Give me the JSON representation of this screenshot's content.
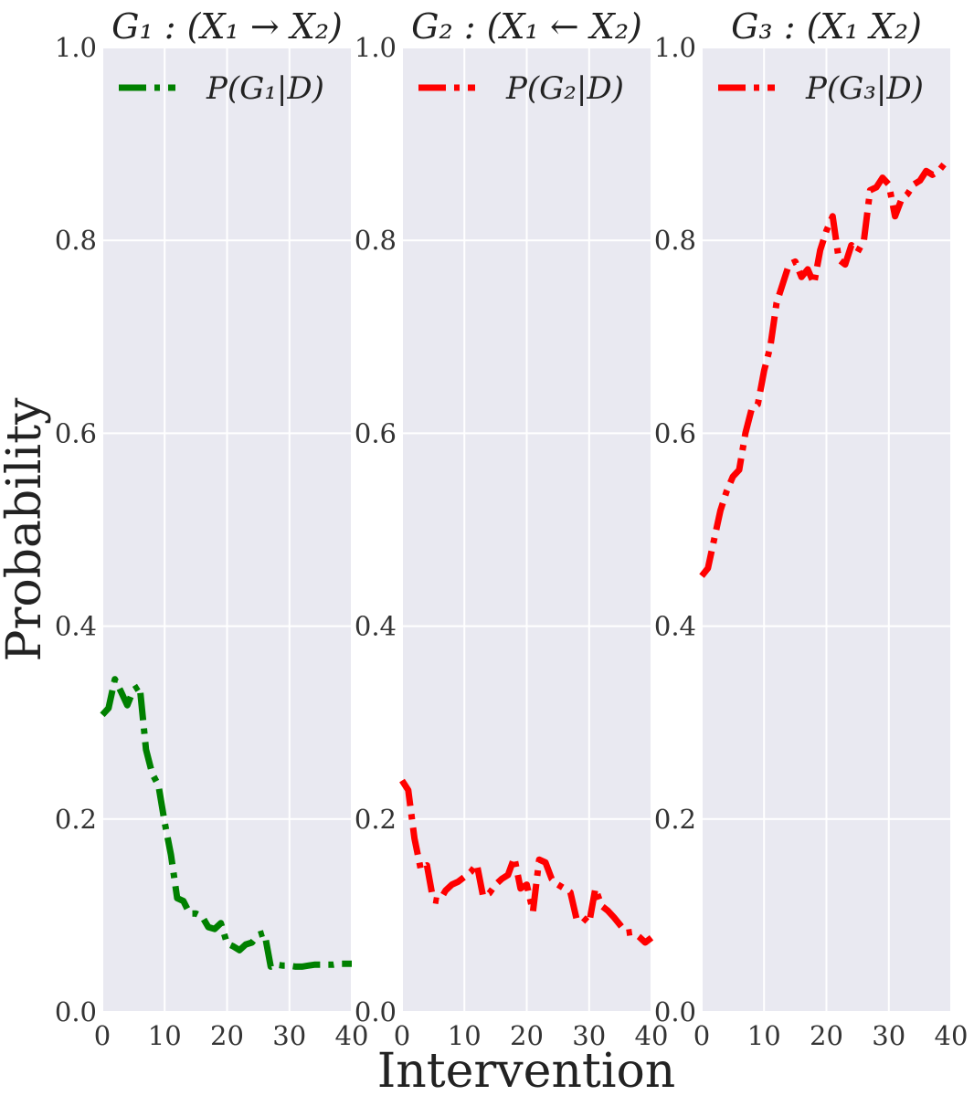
{
  "xlabel": "Intervention",
  "ylabel": "Probability",
  "chart_data": [
    {
      "type": "line",
      "title": "G₁ : (X₁ → X₂)",
      "xlim": [
        0,
        40
      ],
      "ylim": [
        0,
        1
      ],
      "xticks": [
        "0",
        "10",
        "20",
        "30",
        "40"
      ],
      "yticks": [
        "0.0",
        "0.2",
        "0.4",
        "0.6",
        "0.8",
        "1.0"
      ],
      "grid": true,
      "legend_position": "top-left",
      "series": [
        {
          "name": "P(G₁|D)",
          "color": "#008000",
          "x": [
            0,
            1,
            2,
            3,
            4,
            5,
            6,
            7,
            8,
            9,
            10,
            11,
            12,
            13,
            14,
            15,
            16,
            17,
            18,
            19,
            20,
            21,
            22,
            23,
            24,
            25,
            26,
            27,
            28,
            29,
            30,
            31,
            32,
            33,
            34,
            35,
            36,
            37,
            38,
            39,
            40
          ],
          "y": [
            0.308,
            0.315,
            0.345,
            0.332,
            0.318,
            0.334,
            0.338,
            0.272,
            0.247,
            0.235,
            0.196,
            0.163,
            0.118,
            0.115,
            0.102,
            0.102,
            0.099,
            0.088,
            0.086,
            0.092,
            0.071,
            0.068,
            0.064,
            0.07,
            0.072,
            0.08,
            0.082,
            0.047,
            0.049,
            0.048,
            0.048,
            0.047,
            0.047,
            0.048,
            0.049,
            0.049,
            0.049,
            0.049,
            0.05,
            0.05,
            0.05
          ]
        }
      ]
    },
    {
      "type": "line",
      "title": "G₂ : (X₁ ← X₂)",
      "xlim": [
        0,
        40
      ],
      "ylim": [
        0,
        1
      ],
      "xticks": [
        "0",
        "10",
        "20",
        "30",
        "40"
      ],
      "yticks": [
        "0.0",
        "0.2",
        "0.4",
        "0.6",
        "0.8",
        "1.0"
      ],
      "grid": true,
      "legend_position": "top-left",
      "series": [
        {
          "name": "P(G₂|D)",
          "color": "#ff0000",
          "x": [
            0,
            1,
            2,
            3,
            4,
            5,
            6,
            7,
            8,
            9,
            10,
            11,
            12,
            13,
            14,
            15,
            16,
            17,
            18,
            19,
            20,
            21,
            22,
            23,
            24,
            25,
            26,
            27,
            28,
            29,
            30,
            31,
            32,
            33,
            34,
            35,
            36,
            37,
            38,
            39,
            40
          ],
          "y": [
            0.24,
            0.23,
            0.18,
            0.148,
            0.152,
            0.116,
            0.115,
            0.126,
            0.132,
            0.135,
            0.14,
            0.145,
            0.153,
            0.12,
            0.123,
            0.132,
            0.138,
            0.142,
            0.16,
            0.128,
            0.132,
            0.104,
            0.158,
            0.155,
            0.138,
            0.132,
            0.128,
            0.124,
            0.096,
            0.098,
            0.092,
            0.128,
            0.11,
            0.105,
            0.098,
            0.09,
            0.082,
            0.083,
            0.078,
            0.072,
            0.077
          ]
        }
      ]
    },
    {
      "type": "line",
      "title": "G₃ : (X₁  X₂)",
      "xlim": [
        0,
        40
      ],
      "ylim": [
        0,
        1
      ],
      "xticks": [
        "0",
        "10",
        "20",
        "30",
        "40"
      ],
      "yticks": [
        "0.0",
        "0.2",
        "0.4",
        "0.6",
        "0.8",
        "1.0"
      ],
      "grid": true,
      "legend_position": "top-left",
      "series": [
        {
          "name": "P(G₃|D)",
          "color": "#ff0000",
          "x": [
            0,
            1,
            2,
            3,
            4,
            5,
            6,
            7,
            8,
            9,
            10,
            11,
            12,
            13,
            14,
            15,
            16,
            17,
            18,
            19,
            20,
            21,
            22,
            23,
            24,
            25,
            26,
            27,
            28,
            29,
            30,
            31,
            32,
            33,
            34,
            35,
            36,
            37,
            38,
            39,
            40
          ],
          "y": [
            0.452,
            0.46,
            0.49,
            0.52,
            0.54,
            0.555,
            0.562,
            0.6,
            0.625,
            0.63,
            0.665,
            0.69,
            0.735,
            0.755,
            0.775,
            0.778,
            0.762,
            0.77,
            0.755,
            0.79,
            0.81,
            0.825,
            0.78,
            0.775,
            0.795,
            0.788,
            0.8,
            0.852,
            0.855,
            0.865,
            0.858,
            0.825,
            0.842,
            0.848,
            0.858,
            0.862,
            0.872,
            0.868,
            0.872,
            0.88,
            0.882
          ]
        }
      ]
    }
  ]
}
